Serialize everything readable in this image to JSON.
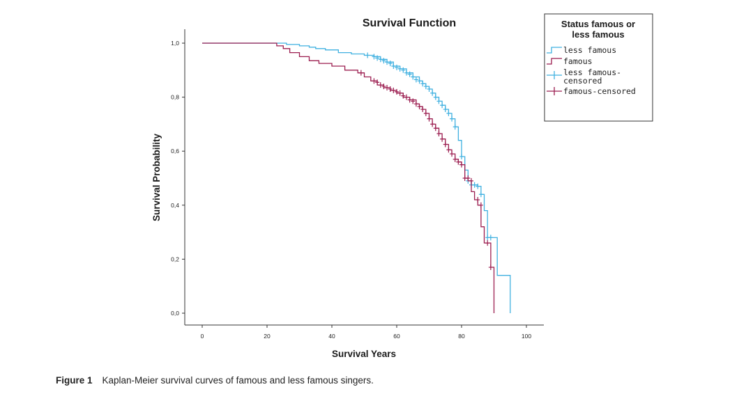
{
  "chart_data": {
    "type": "line",
    "subtype": "kaplan-meier-step",
    "title": "Survival Function",
    "xlabel": "Survival Years",
    "ylabel": "Survival Probability",
    "xlim": [
      0,
      100
    ],
    "ylim": [
      0,
      1
    ],
    "x_ticks": [
      "0",
      "20",
      "40",
      "60",
      "80",
      "100"
    ],
    "x_tick_values": [
      0,
      20,
      40,
      60,
      80,
      100
    ],
    "y_ticks": [
      "0,0",
      "0,2",
      "0,4",
      "0,6",
      "0,8",
      "1,0"
    ],
    "y_tick_values": [
      0,
      0.2,
      0.4,
      0.6,
      0.8,
      1.0
    ],
    "legend": {
      "title_lines": [
        "Status famous or",
        "less famous"
      ],
      "position": "top-right",
      "entries": [
        {
          "label_lines": [
            "less famous"
          ],
          "kind": "step",
          "series": "less famous"
        },
        {
          "label_lines": [
            "famous"
          ],
          "kind": "step",
          "series": "famous"
        },
        {
          "label_lines": [
            "less famous-",
            "censored"
          ],
          "kind": "censor",
          "series": "less famous"
        },
        {
          "label_lines": [
            "famous-censored"
          ],
          "kind": "censor",
          "series": "famous"
        }
      ]
    },
    "series": [
      {
        "name": "less famous",
        "color": "#3fb0e0",
        "x": [
          0,
          22,
          26,
          30,
          33,
          35,
          38,
          42,
          46,
          50,
          53,
          55,
          57,
          59,
          61,
          63,
          65,
          67,
          68,
          69,
          70,
          71,
          72,
          73,
          74,
          75,
          76,
          77,
          78,
          79,
          80,
          81,
          82,
          83,
          84,
          85,
          86,
          87,
          88,
          89,
          91,
          95,
          95
        ],
        "y": [
          1.0,
          1.0,
          0.995,
          0.99,
          0.985,
          0.98,
          0.975,
          0.965,
          0.96,
          0.955,
          0.95,
          0.94,
          0.93,
          0.915,
          0.905,
          0.89,
          0.875,
          0.86,
          0.85,
          0.84,
          0.83,
          0.815,
          0.8,
          0.785,
          0.77,
          0.755,
          0.74,
          0.72,
          0.69,
          0.64,
          0.58,
          0.53,
          0.49,
          0.475,
          0.475,
          0.47,
          0.44,
          0.38,
          0.28,
          0.28,
          0.14,
          0.14,
          0.0
        ],
        "censored_x": [
          51,
          53,
          54,
          55,
          56,
          57,
          58,
          59,
          60,
          61,
          62,
          63,
          64,
          65,
          66,
          67,
          68,
          69,
          70,
          71,
          72,
          73,
          74,
          75,
          76,
          77,
          78,
          80,
          82,
          83,
          84,
          85,
          86,
          88,
          89
        ],
        "censored_y": [
          0.955,
          0.95,
          0.945,
          0.94,
          0.935,
          0.93,
          0.925,
          0.915,
          0.91,
          0.905,
          0.9,
          0.89,
          0.885,
          0.875,
          0.865,
          0.86,
          0.85,
          0.84,
          0.83,
          0.815,
          0.8,
          0.785,
          0.77,
          0.755,
          0.74,
          0.72,
          0.69,
          0.58,
          0.49,
          0.475,
          0.475,
          0.47,
          0.44,
          0.28,
          0.28
        ]
      },
      {
        "name": "famous",
        "color": "#9b1c4f",
        "x": [
          0,
          21,
          23,
          25,
          27,
          30,
          33,
          36,
          40,
          44,
          48,
          50,
          52,
          54,
          56,
          58,
          60,
          62,
          64,
          66,
          67,
          68,
          69,
          70,
          71,
          72,
          73,
          74,
          75,
          76,
          77,
          78,
          79,
          80,
          81,
          82,
          83,
          84,
          85,
          86,
          87,
          88,
          89,
          90,
          90
        ],
        "y": [
          1.0,
          1.0,
          0.99,
          0.98,
          0.965,
          0.95,
          0.935,
          0.925,
          0.915,
          0.9,
          0.89,
          0.875,
          0.86,
          0.845,
          0.835,
          0.825,
          0.815,
          0.8,
          0.79,
          0.775,
          0.765,
          0.755,
          0.74,
          0.72,
          0.7,
          0.685,
          0.665,
          0.645,
          0.625,
          0.605,
          0.59,
          0.57,
          0.56,
          0.55,
          0.5,
          0.49,
          0.45,
          0.42,
          0.4,
          0.32,
          0.26,
          0.26,
          0.17,
          0.17,
          0.0
        ],
        "censored_x": [
          49,
          53,
          54,
          55,
          56,
          57,
          58,
          59,
          60,
          61,
          62,
          63,
          64,
          65,
          66,
          67,
          68,
          69,
          70,
          71,
          72,
          73,
          74,
          75,
          76,
          77,
          78,
          79,
          80,
          81,
          82,
          83,
          85,
          86,
          88,
          89
        ],
        "censored_y": [
          0.89,
          0.86,
          0.855,
          0.845,
          0.84,
          0.835,
          0.83,
          0.825,
          0.82,
          0.815,
          0.805,
          0.8,
          0.79,
          0.785,
          0.775,
          0.765,
          0.755,
          0.74,
          0.72,
          0.7,
          0.685,
          0.665,
          0.645,
          0.625,
          0.605,
          0.59,
          0.57,
          0.56,
          0.55,
          0.5,
          0.5,
          0.49,
          0.42,
          0.4,
          0.26,
          0.17
        ]
      }
    ]
  },
  "caption": {
    "label": "Figure 1",
    "text": "Kaplan-Meier survival curves of famous and less famous singers."
  }
}
